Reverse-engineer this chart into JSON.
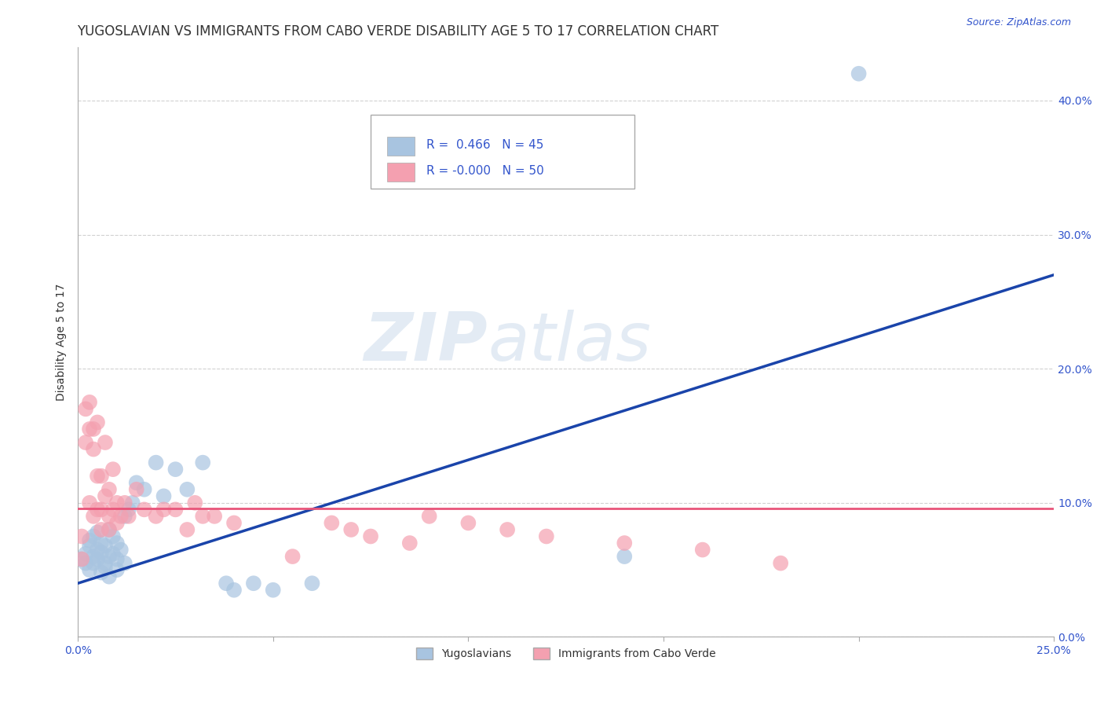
{
  "title": "YUGOSLAVIAN VS IMMIGRANTS FROM CABO VERDE DISABILITY AGE 5 TO 17 CORRELATION CHART",
  "source": "Source: ZipAtlas.com",
  "xlabel": "",
  "ylabel": "Disability Age 5 to 17",
  "xlim": [
    0.0,
    0.25
  ],
  "ylim": [
    0.0,
    0.44
  ],
  "xticks": [
    0.0,
    0.05,
    0.1,
    0.15,
    0.2,
    0.25
  ],
  "xtick_labels": [
    "0.0%",
    "",
    "",
    "",
    "",
    "25.0%"
  ],
  "yticks": [
    0.0,
    0.1,
    0.2,
    0.3,
    0.4
  ],
  "ytick_labels": [
    "0.0%",
    "10.0%",
    "20.0%",
    "30.0%",
    "40.0%"
  ],
  "yugoslavian_color": "#a8c4e0",
  "cabo_verde_color": "#f4a0b0",
  "trend_blue": "#1a44aa",
  "trend_pink": "#e8557a",
  "watermark_zip": "ZIP",
  "watermark_atlas": "atlas",
  "legend_R_blue": "0.466",
  "legend_N_blue": "45",
  "legend_R_pink": "-0.000",
  "legend_N_pink": "50",
  "yugoslavian_x": [
    0.001,
    0.002,
    0.002,
    0.003,
    0.003,
    0.003,
    0.004,
    0.004,
    0.004,
    0.005,
    0.005,
    0.005,
    0.006,
    0.006,
    0.006,
    0.007,
    0.007,
    0.007,
    0.008,
    0.008,
    0.008,
    0.009,
    0.009,
    0.01,
    0.01,
    0.01,
    0.011,
    0.012,
    0.012,
    0.013,
    0.014,
    0.015,
    0.017,
    0.02,
    0.022,
    0.025,
    0.028,
    0.032,
    0.038,
    0.04,
    0.045,
    0.05,
    0.06,
    0.14,
    0.2
  ],
  "yugoslavian_y": [
    0.058,
    0.055,
    0.062,
    0.068,
    0.05,
    0.072,
    0.06,
    0.075,
    0.055,
    0.065,
    0.078,
    0.058,
    0.07,
    0.063,
    0.048,
    0.052,
    0.068,
    0.055,
    0.08,
    0.06,
    0.045,
    0.062,
    0.075,
    0.058,
    0.07,
    0.05,
    0.065,
    0.09,
    0.055,
    0.095,
    0.1,
    0.115,
    0.11,
    0.13,
    0.105,
    0.125,
    0.11,
    0.13,
    0.04,
    0.035,
    0.04,
    0.035,
    0.04,
    0.06,
    0.42
  ],
  "cabo_verde_x": [
    0.001,
    0.001,
    0.002,
    0.002,
    0.003,
    0.003,
    0.003,
    0.004,
    0.004,
    0.004,
    0.005,
    0.005,
    0.005,
    0.006,
    0.006,
    0.006,
    0.007,
    0.007,
    0.008,
    0.008,
    0.008,
    0.009,
    0.009,
    0.01,
    0.01,
    0.011,
    0.012,
    0.013,
    0.015,
    0.017,
    0.02,
    0.022,
    0.025,
    0.028,
    0.03,
    0.032,
    0.035,
    0.04,
    0.055,
    0.065,
    0.07,
    0.075,
    0.085,
    0.09,
    0.1,
    0.11,
    0.12,
    0.14,
    0.16,
    0.18
  ],
  "cabo_verde_y": [
    0.058,
    0.075,
    0.17,
    0.145,
    0.175,
    0.155,
    0.1,
    0.09,
    0.14,
    0.155,
    0.16,
    0.12,
    0.095,
    0.12,
    0.095,
    0.08,
    0.145,
    0.105,
    0.08,
    0.11,
    0.09,
    0.125,
    0.095,
    0.085,
    0.1,
    0.09,
    0.1,
    0.09,
    0.11,
    0.095,
    0.09,
    0.095,
    0.095,
    0.08,
    0.1,
    0.09,
    0.09,
    0.085,
    0.06,
    0.085,
    0.08,
    0.075,
    0.07,
    0.09,
    0.085,
    0.08,
    0.075,
    0.07,
    0.065,
    0.055
  ],
  "blue_line_x": [
    0.0,
    0.25
  ],
  "blue_line_y": [
    0.04,
    0.27
  ],
  "pink_line_x": [
    0.0,
    0.25
  ],
  "pink_line_y": [
    0.096,
    0.096
  ],
  "background_color": "#ffffff",
  "grid_color": "#cccccc",
  "title_fontsize": 12,
  "axis_label_fontsize": 10,
  "tick_fontsize": 10,
  "legend_label_blue": "Yugoslavians",
  "legend_label_pink": "Immigrants from Cabo Verde"
}
